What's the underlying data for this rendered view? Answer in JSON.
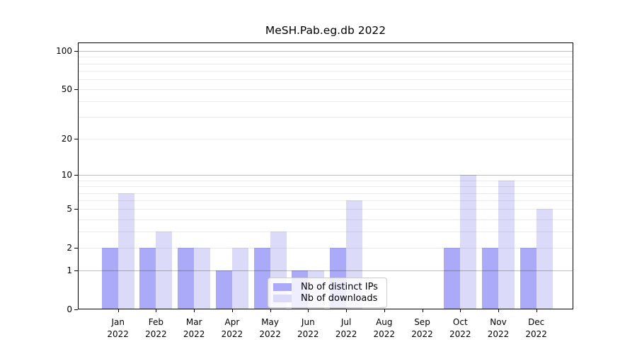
{
  "chart_data": {
    "type": "bar",
    "title": "MeSH.Pab.eg.db 2022",
    "categories": [
      "Jan",
      "Feb",
      "Mar",
      "Apr",
      "May",
      "Jun",
      "Jul",
      "Aug",
      "Sep",
      "Oct",
      "Nov",
      "Dec"
    ],
    "category_sublabel": "2022",
    "series": [
      {
        "name": "Nb of distinct IPs",
        "color": "#aaaaf8",
        "values": [
          2,
          2,
          2,
          1,
          2,
          1,
          2,
          0,
          0,
          2,
          2,
          2
        ]
      },
      {
        "name": "Nb of downloads",
        "color": "#dbdbf9",
        "values": [
          7,
          3,
          2,
          2,
          3,
          1,
          6,
          0,
          0,
          10,
          9,
          5
        ]
      }
    ],
    "xlabel": "",
    "ylabel": "",
    "yscale": "log1p",
    "ylim": [
      0,
      114
    ],
    "y_ticks": [
      0,
      1,
      2,
      5,
      10,
      20,
      50,
      100
    ],
    "y_major_gridlines": [
      1,
      10,
      100
    ],
    "y_minor_gridlines": [
      2,
      3,
      4,
      5,
      6,
      7,
      8,
      9,
      20,
      30,
      40,
      50,
      60,
      70,
      80,
      90
    ],
    "grid": true,
    "legend_position": "lower center"
  }
}
